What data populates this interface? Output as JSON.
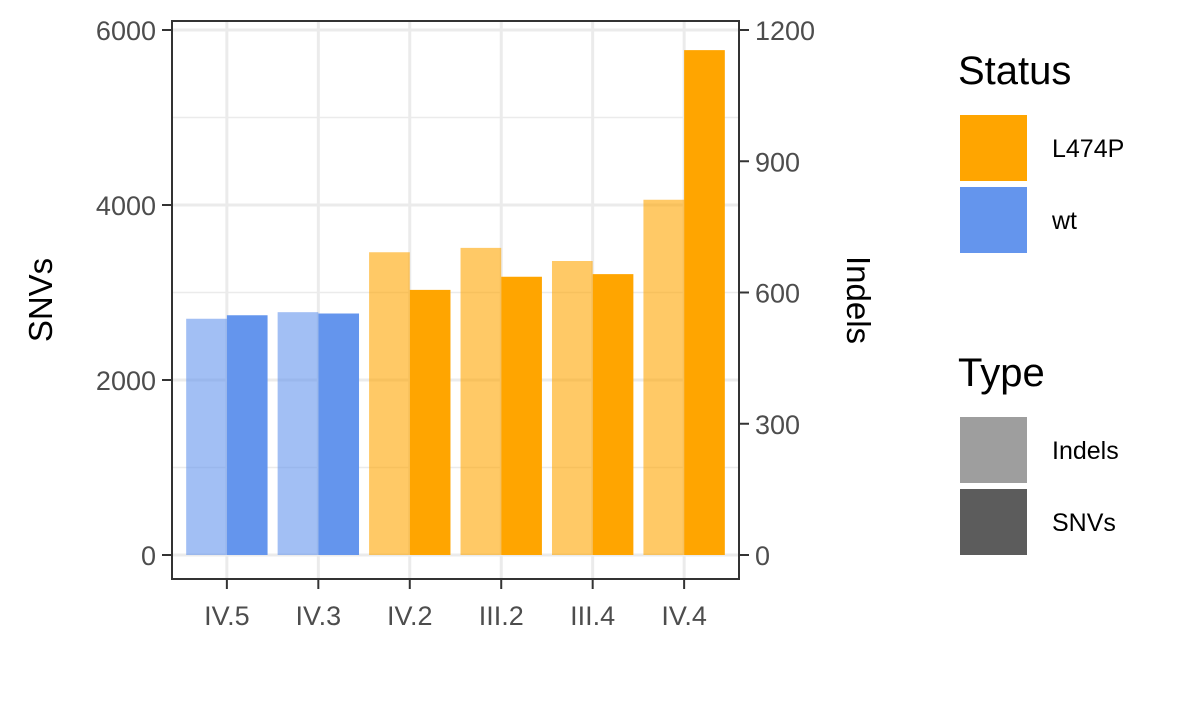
{
  "chart_data": {
    "type": "bar",
    "subtype": "grouped dual-axis",
    "categories": [
      "IV.5",
      "IV.3",
      "IV.2",
      "III.2",
      "III.4",
      "IV.4"
    ],
    "status": [
      "wt",
      "wt",
      "L474P",
      "L474P",
      "L474P",
      "L474P"
    ],
    "series": [
      {
        "name": "Indels",
        "axis": "right",
        "values": [
          540,
          555,
          692,
          702,
          672,
          812
        ]
      },
      {
        "name": "SNVs",
        "axis": "left",
        "values": [
          2740,
          2760,
          3030,
          3180,
          3210,
          5770
        ]
      }
    ],
    "ylabel_left": "SNVs",
    "ylim_left": [
      0,
      6000
    ],
    "yticks_left": [
      "0",
      "2000",
      "4000",
      "6000"
    ],
    "ylabel_right": "Indels",
    "ylim_right": [
      0,
      1200
    ],
    "yticks_right": [
      "0",
      "300",
      "600",
      "900",
      "1200"
    ],
    "xlabel": "",
    "grid": true,
    "legend": {
      "status": {
        "title": "Status",
        "items": [
          {
            "label": "L474P",
            "color": "#FFA500"
          },
          {
            "label": "wt",
            "color": "#6495ED"
          }
        ]
      },
      "type": {
        "title": "Type",
        "items": [
          {
            "label": "Indels",
            "color": "#9E9E9E"
          },
          {
            "label": "SNVs",
            "color": "#5C5C5C"
          }
        ]
      },
      "placement": "right"
    },
    "colors": {
      "L474P": "#FFA500",
      "wt": "#6495ED",
      "indel_alpha": 0.6
    }
  }
}
